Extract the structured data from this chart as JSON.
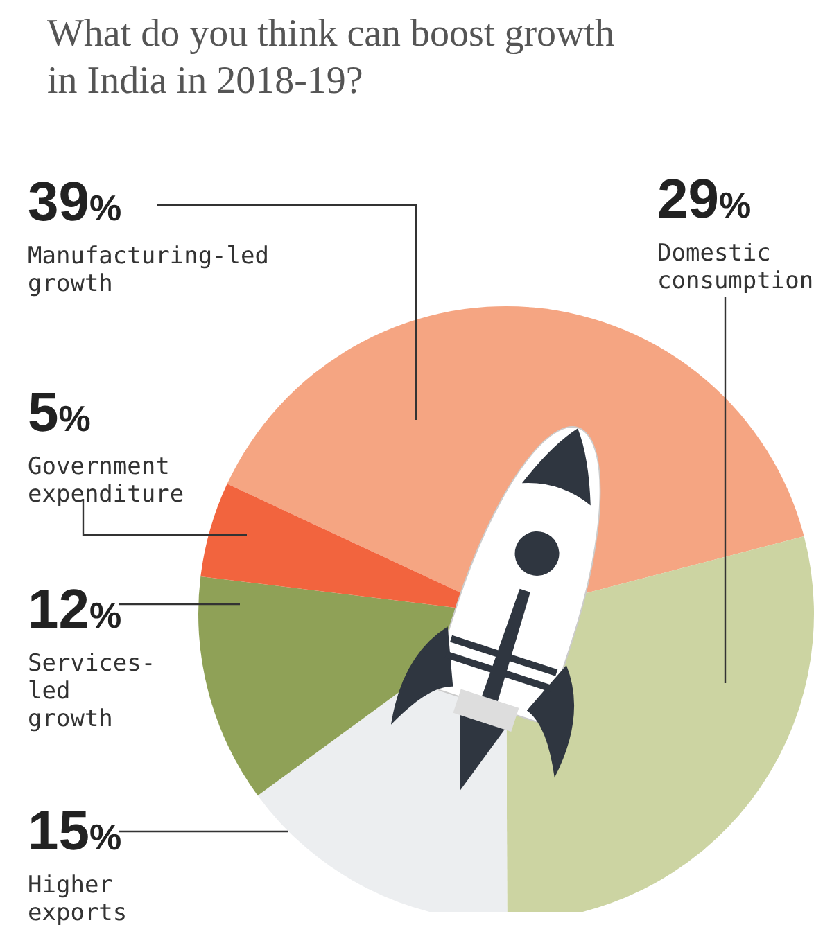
{
  "chart_data": {
    "type": "pie",
    "title": "What do you think can boost growth in India in 2018-19?",
    "categories": [
      "Manufacturing-led growth",
      "Domestic consumption",
      "Higher exports",
      "Services-led growth",
      "Government expenditure"
    ],
    "values": [
      39,
      29,
      15,
      12,
      5
    ],
    "colors": [
      "#f5a582",
      "#ccd4a2",
      "#eceef0",
      "#8fa157",
      "#f2643e"
    ],
    "value_labels": [
      "39%",
      "29%",
      "15%",
      "12%",
      "5%"
    ]
  }
}
